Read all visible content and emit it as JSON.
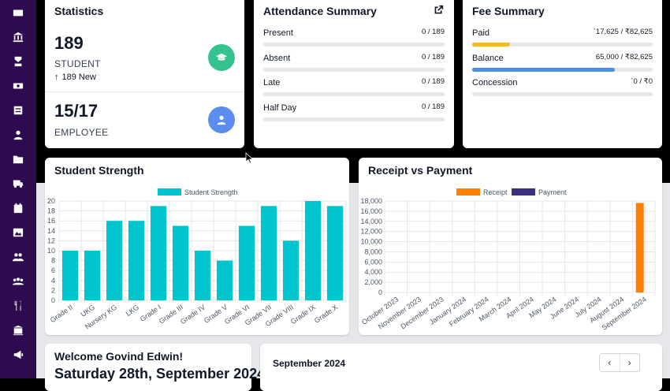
{
  "sidebar": {
    "icons": [
      "dashboard-icon",
      "institution-icon",
      "graduation-icon",
      "money-icon",
      "notebook-icon",
      "user-icon",
      "folder-icon",
      "bus-icon",
      "calendar-icon",
      "image-icon",
      "users-icon",
      "group-icon",
      "dining-icon",
      "library-icon",
      "megaphone-icon"
    ]
  },
  "statistics": {
    "title": "Statistics",
    "student_count": "189",
    "student_label": "STUDENT",
    "student_new": "189 New",
    "employee_count": "15/17",
    "employee_label": "EMPLOYEE",
    "student_badge_color": "#34c38f",
    "employee_badge_color": "#5b8def"
  },
  "attendance": {
    "title": "Attendance Summary",
    "rows": [
      {
        "label": "Present",
        "value": "0 / 189",
        "fraction": 0
      },
      {
        "label": "Absent",
        "value": "0 / 189",
        "fraction": 0
      },
      {
        "label": "Late",
        "value": "0 / 189",
        "fraction": 0
      },
      {
        "label": "Half Day",
        "value": "0 / 189",
        "fraction": 0
      }
    ]
  },
  "fee": {
    "title": "Fee Summary",
    "rows": [
      {
        "label": "Paid",
        "value": "`17,625 / ₹82,625",
        "fraction": 0.21,
        "color": "#f7b924"
      },
      {
        "label": "Balance",
        "value": "65,000 / ₹82,625",
        "fraction": 0.79,
        "color": "#4a90e2"
      },
      {
        "label": "Concession",
        "value": "`0 / ₹0",
        "fraction": 0,
        "color": "#4a90e2"
      }
    ]
  },
  "student_strength": {
    "title": "Student Strength",
    "chart_data": {
      "type": "bar",
      "legend": "Student Strength",
      "color": "#00c5cd",
      "categories": [
        "Grade II",
        "UKG",
        "Nursery KG",
        "LKG",
        "Grade I",
        "Grade III",
        "Grade IV",
        "Grade V",
        "Grade VI",
        "Grade VII",
        "Grade VIII",
        "Grade IX",
        "Grade X"
      ],
      "values": [
        10,
        10,
        16,
        16,
        19,
        15,
        10,
        8,
        15,
        19,
        12,
        20,
        19
      ],
      "ylim": [
        0,
        20
      ],
      "yticks": [
        0,
        2,
        4,
        6,
        8,
        10,
        12,
        14,
        16,
        18,
        20
      ],
      "grid": true,
      "legend_position": "top"
    }
  },
  "receipt_payment": {
    "title": "Receipt vs Payment",
    "chart_data": {
      "type": "bar",
      "categories": [
        "October 2023",
        "November 2023",
        "December 2023",
        "January 2024",
        "February 2024",
        "March 2024",
        "April 2024",
        "May 2024",
        "June 2024",
        "July 2024",
        "August 2024",
        "September 2024"
      ],
      "series": [
        {
          "name": "Receipt",
          "color": "#ff8000",
          "values": [
            0,
            0,
            0,
            0,
            0,
            0,
            0,
            0,
            0,
            0,
            0,
            17625
          ]
        },
        {
          "name": "Payment",
          "color": "#3c2f80",
          "values": [
            0,
            0,
            0,
            0,
            0,
            0,
            0,
            0,
            0,
            0,
            0,
            0
          ]
        }
      ],
      "ylim": [
        0,
        18000
      ],
      "ytick_labels": [
        "0",
        "2,000",
        "4,000",
        "6,000",
        "8,000",
        "10,000",
        "12,000",
        "14,000",
        "16,000",
        "18,000"
      ],
      "grid": true,
      "legend_position": "top"
    }
  },
  "welcome": {
    "title": "Welcome Govind Edwin!",
    "date": "Saturday 28th, September 2024"
  },
  "calendar": {
    "month": "September 2024",
    "prev": "‹",
    "next": "›"
  }
}
